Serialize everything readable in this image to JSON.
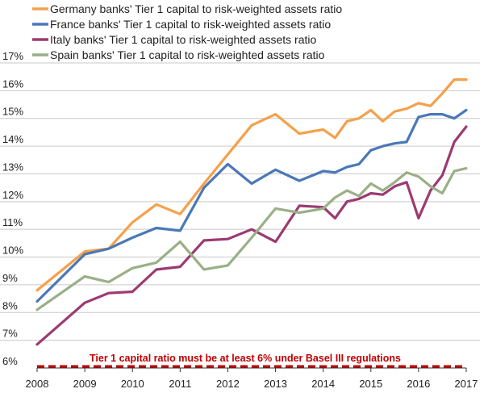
{
  "chart_data": {
    "type": "line",
    "x_range": [
      2008,
      2017
    ],
    "ylim": [
      6,
      17
    ],
    "y_ticks": [
      "6%",
      "7%",
      "8%",
      "9%",
      "10%",
      "11%",
      "12%",
      "13%",
      "14%",
      "15%",
      "16%",
      "17%"
    ],
    "x_ticks": [
      "2008",
      "2009",
      "2010",
      "2011",
      "2012",
      "2013",
      "2014",
      "2015",
      "2016",
      "2017"
    ],
    "grid": "horizontal",
    "legend_position": "top-left",
    "series": [
      {
        "name": "Germany banks' Tier 1 capital to risk-weighted assets ratio",
        "color": "#f5a04a",
        "points": [
          [
            2008,
            8.8
          ],
          [
            2009,
            10.2
          ],
          [
            2009.5,
            10.3
          ],
          [
            2010,
            11.25
          ],
          [
            2010.5,
            11.9
          ],
          [
            2011,
            11.55
          ],
          [
            2011.5,
            12.65
          ],
          [
            2012,
            13.7
          ],
          [
            2012.5,
            14.75
          ],
          [
            2013,
            15.15
          ],
          [
            2013.5,
            14.45
          ],
          [
            2014,
            14.6
          ],
          [
            2014.25,
            14.3
          ],
          [
            2014.5,
            14.9
          ],
          [
            2014.75,
            15.0
          ],
          [
            2015,
            15.3
          ],
          [
            2015.25,
            14.9
          ],
          [
            2015.5,
            15.25
          ],
          [
            2015.75,
            15.35
          ],
          [
            2016,
            15.55
          ],
          [
            2016.25,
            15.45
          ],
          [
            2016.5,
            15.9
          ],
          [
            2016.75,
            16.4
          ],
          [
            2017,
            16.4
          ]
        ]
      },
      {
        "name": "France banks' Tier 1 capital to risk-weighted assets ratio",
        "color": "#4a78b8",
        "points": [
          [
            2008,
            8.4
          ],
          [
            2009,
            10.1
          ],
          [
            2009.5,
            10.3
          ],
          [
            2010,
            10.7
          ],
          [
            2010.5,
            11.05
          ],
          [
            2011,
            10.95
          ],
          [
            2011.5,
            12.5
          ],
          [
            2012,
            13.35
          ],
          [
            2012.5,
            12.65
          ],
          [
            2013,
            13.15
          ],
          [
            2013.5,
            12.75
          ],
          [
            2014,
            13.1
          ],
          [
            2014.25,
            13.05
          ],
          [
            2014.5,
            13.25
          ],
          [
            2014.75,
            13.35
          ],
          [
            2015,
            13.85
          ],
          [
            2015.25,
            14.0
          ],
          [
            2015.5,
            14.1
          ],
          [
            2015.75,
            14.15
          ],
          [
            2016,
            15.05
          ],
          [
            2016.25,
            15.15
          ],
          [
            2016.5,
            15.15
          ],
          [
            2016.75,
            15.0
          ],
          [
            2017,
            15.3
          ]
        ]
      },
      {
        "name": "Italy banks' Tier 1 capital to risk-weighted assets ratio",
        "color": "#9c3a72",
        "points": [
          [
            2008,
            6.85
          ],
          [
            2009,
            8.35
          ],
          [
            2009.5,
            8.7
          ],
          [
            2010,
            8.75
          ],
          [
            2010.5,
            9.55
          ],
          [
            2011,
            9.65
          ],
          [
            2011.5,
            10.6
          ],
          [
            2012,
            10.65
          ],
          [
            2012.5,
            11.0
          ],
          [
            2013,
            10.55
          ],
          [
            2013.5,
            11.85
          ],
          [
            2014,
            11.8
          ],
          [
            2014.25,
            11.4
          ],
          [
            2014.5,
            12.0
          ],
          [
            2014.75,
            12.1
          ],
          [
            2015,
            12.3
          ],
          [
            2015.25,
            12.25
          ],
          [
            2015.5,
            12.55
          ],
          [
            2015.75,
            12.7
          ],
          [
            2016,
            11.4
          ],
          [
            2016.25,
            12.4
          ],
          [
            2016.5,
            12.95
          ],
          [
            2016.75,
            14.15
          ],
          [
            2017,
            14.7
          ]
        ]
      },
      {
        "name": "Spain banks' Tier 1 capital to risk-weighted assets ratio",
        "color": "#9aaf86",
        "points": [
          [
            2008,
            8.1
          ],
          [
            2009,
            9.3
          ],
          [
            2009.5,
            9.1
          ],
          [
            2010,
            9.6
          ],
          [
            2010.5,
            9.8
          ],
          [
            2011,
            10.55
          ],
          [
            2011.5,
            9.55
          ],
          [
            2012,
            9.7
          ],
          [
            2012.5,
            10.7
          ],
          [
            2013,
            11.75
          ],
          [
            2013.5,
            11.6
          ],
          [
            2014,
            11.75
          ],
          [
            2014.25,
            12.15
          ],
          [
            2014.5,
            12.4
          ],
          [
            2014.75,
            12.2
          ],
          [
            2015,
            12.65
          ],
          [
            2015.25,
            12.4
          ],
          [
            2015.5,
            12.7
          ],
          [
            2015.75,
            13.05
          ],
          [
            2016,
            12.9
          ],
          [
            2016.25,
            12.55
          ],
          [
            2016.5,
            12.3
          ],
          [
            2016.75,
            13.1
          ],
          [
            2017,
            13.2
          ]
        ]
      }
    ],
    "threshold": {
      "value": 6,
      "color": "#c00000",
      "label": "Tier 1 capital ratio must be at least 6% under Basel III regulations"
    }
  }
}
